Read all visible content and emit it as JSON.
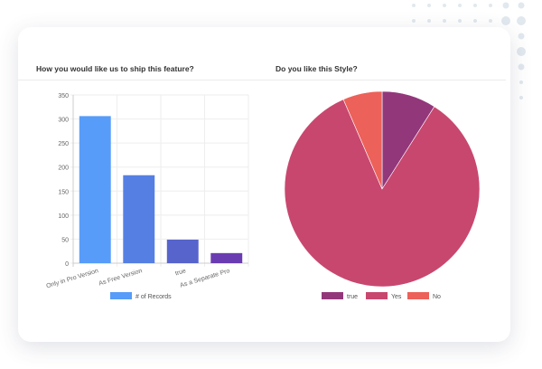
{
  "chart_data": [
    {
      "type": "bar",
      "title": "How you would like us to ship this feature?",
      "categories": [
        "Only in Pro Version",
        "As Free Version",
        "true",
        "As a Separate Pro"
      ],
      "values": [
        306,
        183,
        49,
        21
      ],
      "colors": [
        "#579cf8",
        "#557fe2",
        "#5764cc",
        "#6a3cb2"
      ],
      "ylim": [
        0,
        350
      ],
      "yticks": [
        0,
        50,
        100,
        150,
        200,
        250,
        300,
        350
      ],
      "legend": "# of Records",
      "grid": true
    },
    {
      "type": "pie",
      "title": "Do you like this Style?",
      "labels": [
        "true",
        "Yes",
        "No"
      ],
      "values": [
        9,
        84.5,
        6.5
      ],
      "colors": [
        "#93377b",
        "#c8476f",
        "#ec6159"
      ]
    }
  ]
}
